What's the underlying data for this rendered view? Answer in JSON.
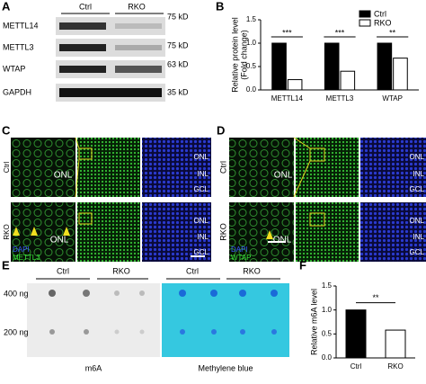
{
  "panel_labels": [
    "A",
    "B",
    "C",
    "D",
    "E",
    "F"
  ],
  "blot": {
    "groups": [
      "Ctrl",
      "RKO"
    ],
    "proteins": [
      "METTL14",
      "METTL3",
      "WTAP",
      "GAPDH"
    ],
    "markers": [
      "75 kD",
      "75 kD",
      "63 kD",
      "35 kD"
    ]
  },
  "chart_data": [
    {
      "type": "bar",
      "ylabel": [
        "Relative protein level",
        "(Fold change)"
      ],
      "categories": [
        "METTL14",
        "METTL3",
        "WTAP"
      ],
      "series": [
        {
          "name": "Ctrl",
          "color": "#000000",
          "values": [
            1.0,
            1.0,
            1.0
          ]
        },
        {
          "name": "RKO",
          "color": "#ffffff",
          "values": [
            0.22,
            0.4,
            0.68
          ]
        }
      ],
      "significance": [
        "***",
        "***",
        "**"
      ],
      "ylim": [
        0,
        1.5
      ],
      "yticks": [
        {
          "value": 0,
          "label": "0.0"
        },
        {
          "value": 0.5,
          "label": "0.5"
        },
        {
          "value": 1,
          "label": "1.0"
        },
        {
          "value": 1.5,
          "label": "1.5"
        }
      ]
    },
    {
      "type": "bar",
      "ylabel": "Relative m6A  level",
      "categories": [
        "Ctrl",
        "RKO"
      ],
      "values": [
        1.0,
        0.58
      ],
      "colors": [
        "#000000",
        "#ffffff"
      ],
      "significance": "**",
      "ylim": [
        0,
        1.5
      ],
      "yticks": [
        {
          "value": 0,
          "label": "0.0"
        },
        {
          "value": 0.5,
          "label": "0.5"
        },
        {
          "value": 1,
          "label": "1.0"
        },
        {
          "value": 1.5,
          "label": "1.5"
        }
      ]
    }
  ],
  "retina_c": {
    "rows": [
      "Ctrl",
      "RKO"
    ],
    "inner_label": "ONL",
    "layers": [
      "ONL",
      "INL",
      "GCL"
    ],
    "stains": [
      "DAPI",
      "METTL3"
    ]
  },
  "retina_d": {
    "rows": [
      "Ctrl",
      "RKO"
    ],
    "inner_label": "ONL",
    "layers": [
      "ONL",
      "INL",
      "GCL"
    ],
    "stains": [
      "DAPI",
      "WTAP"
    ]
  },
  "dot_blot": {
    "groups": [
      "Ctrl",
      "RKO",
      "Ctrl",
      "RKO"
    ],
    "amounts": [
      "400 ng",
      "200 ng"
    ],
    "stains": [
      "m6A",
      "Methylene blue"
    ]
  }
}
